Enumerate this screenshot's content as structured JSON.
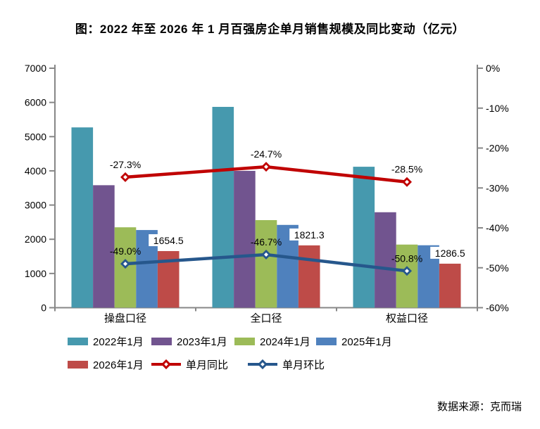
{
  "figure": {
    "source_note": "数据来源：克而瑞"
  },
  "chart_data": {
    "type": "bar+line",
    "title": "图：2022 年至 2026 年 1 月百强房企单月销售规模及同比变动（亿元）",
    "categories": [
      "操盘口径",
      "全口径",
      "权益口径"
    ],
    "bar_series": [
      {
        "name": "2022年1月",
        "color": "#4699AE",
        "axis": "left",
        "values": [
          5270,
          5870,
          4120
        ]
      },
      {
        "name": "2023年1月",
        "color": "#71548F",
        "axis": "left",
        "values": [
          3580,
          4000,
          2790
        ]
      },
      {
        "name": "2024年1月",
        "color": "#9CBB58",
        "axis": "left",
        "values": [
          2350,
          2560,
          1845
        ]
      },
      {
        "name": "2025年1月",
        "color": "#4F81BD",
        "axis": "left",
        "values": [
          2270,
          2420,
          1825
        ]
      },
      {
        "name": "2026年1月",
        "color": "#BE4B48",
        "axis": "left",
        "values": [
          1654.5,
          1821.3,
          1286.5
        ],
        "labels": [
          "1654.5",
          "1821.3",
          "1286.5"
        ]
      }
    ],
    "line_series": [
      {
        "name": "单月同比",
        "color": "#C00000",
        "axis": "right",
        "values": [
          -27.3,
          -24.7,
          -28.5
        ],
        "labels": [
          "-27.3%",
          "-24.7%",
          "-28.5%"
        ]
      },
      {
        "name": "单月环比",
        "color": "#26578C",
        "axis": "right",
        "values": [
          -49.0,
          -46.7,
          -50.8
        ],
        "labels": [
          "-49.0%",
          "-46.7%",
          "-50.8%"
        ]
      }
    ],
    "left_axis": {
      "min": 0,
      "max": 7000,
      "tick_values": [
        0,
        1000,
        2000,
        3000,
        4000,
        5000,
        6000,
        7000
      ],
      "tick_labels": [
        "0",
        "1000",
        "2000",
        "3000",
        "4000",
        "5000",
        "6000",
        "7000"
      ]
    },
    "right_axis": {
      "min": -60,
      "max": 0,
      "tick_values": [
        0,
        -10,
        -20,
        -30,
        -40,
        -50,
        -60
      ],
      "tick_labels": [
        "0%",
        "-10%",
        "-20%",
        "-30%",
        "-40%",
        "-50%",
        "-60%"
      ]
    },
    "grid": false,
    "legend_position": "bottom",
    "axis_color": "#878787",
    "text_color": "#000000",
    "background": "#FFFFFF"
  }
}
